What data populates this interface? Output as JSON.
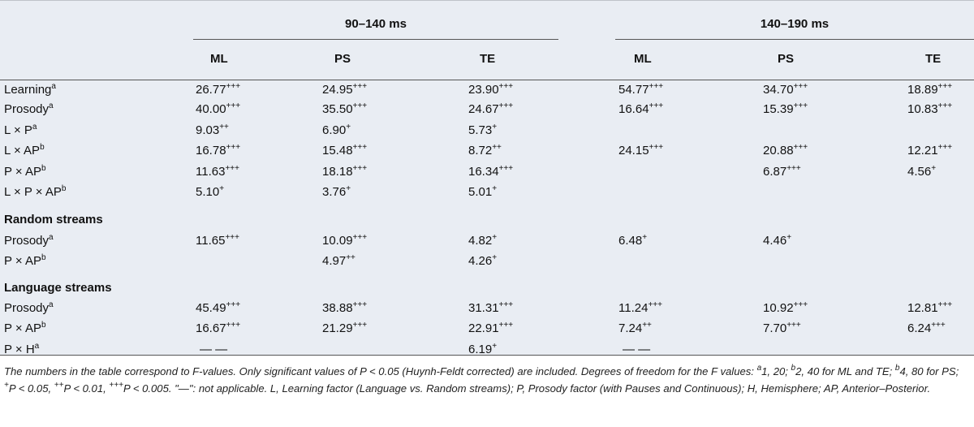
{
  "header": {
    "groups": [
      "90–140 ms",
      "140–190 ms"
    ],
    "columns": [
      "ML",
      "PS",
      "TE",
      "ML",
      "PS",
      "TE"
    ]
  },
  "rows": [
    {
      "label": "Learning",
      "sup": "a",
      "cells": [
        [
          "26.77",
          "+++"
        ],
        [
          "24.95",
          "+++"
        ],
        [
          "23.90",
          "+++"
        ],
        [
          "54.77",
          "+++"
        ],
        [
          "34.70",
          "+++"
        ],
        [
          "18.89",
          "+++"
        ]
      ]
    },
    {
      "label": "Prosody",
      "sup": "a",
      "cells": [
        [
          "40.00",
          "+++"
        ],
        [
          "35.50",
          "+++"
        ],
        [
          "24.67",
          "+++"
        ],
        [
          "16.64",
          "+++"
        ],
        [
          "15.39",
          "+++"
        ],
        [
          "10.83",
          "+++"
        ]
      ]
    },
    {
      "label": "L × P",
      "sup": "a",
      "cells": [
        [
          "9.03",
          "++"
        ],
        [
          "6.90",
          "+"
        ],
        [
          "5.73",
          "+"
        ],
        null,
        null,
        null
      ]
    },
    {
      "label": "L × AP",
      "sup": "b",
      "cells": [
        [
          "16.78",
          "+++"
        ],
        [
          "15.48",
          "+++"
        ],
        [
          "8.72",
          "++"
        ],
        [
          "24.15",
          "+++"
        ],
        [
          "20.88",
          "+++"
        ],
        [
          "12.21",
          "+++"
        ]
      ]
    },
    {
      "label": "P × AP",
      "sup": "b",
      "cells": [
        [
          "11.63",
          "+++"
        ],
        [
          "18.18",
          "+++"
        ],
        [
          "16.34",
          "+++"
        ],
        null,
        [
          "6.87",
          "+++"
        ],
        [
          "4.56",
          "+"
        ]
      ]
    },
    {
      "label": "L × P × AP",
      "sup": "b",
      "cells": [
        [
          "5.10",
          "+"
        ],
        [
          "3.76",
          "+"
        ],
        [
          "5.01",
          "+"
        ],
        null,
        null,
        null
      ]
    },
    {
      "label": "Random streams",
      "section": true
    },
    {
      "label": "Prosody",
      "sup": "a",
      "cells": [
        [
          "11.65",
          "+++"
        ],
        [
          "10.09",
          "+++"
        ],
        [
          "4.82",
          "+"
        ],
        [
          "6.48",
          "+"
        ],
        [
          "4.46",
          "+"
        ],
        null
      ]
    },
    {
      "label": "P × AP",
      "sup": "b",
      "cells": [
        null,
        [
          "4.97",
          "++"
        ],
        [
          "4.26",
          "+"
        ],
        null,
        null,
        null
      ]
    },
    {
      "label": "Language streams",
      "section": true
    },
    {
      "label": "Prosody",
      "sup": "a",
      "cells": [
        [
          "45.49",
          "+++"
        ],
        [
          "38.88",
          "+++"
        ],
        [
          "31.31",
          "+++"
        ],
        [
          "11.24",
          "+++"
        ],
        [
          "10.92",
          "+++"
        ],
        [
          "12.81",
          "+++"
        ]
      ]
    },
    {
      "label": "P × AP",
      "sup": "b",
      "cells": [
        [
          "16.67",
          "+++"
        ],
        [
          "21.29",
          "+++"
        ],
        [
          "22.91",
          "+++"
        ],
        [
          "7.24",
          "++"
        ],
        [
          "7.70",
          "+++"
        ],
        [
          "6.24",
          "+++"
        ]
      ]
    },
    {
      "label": "P × H",
      "sup": "a",
      "cells": [
        [
          "— —",
          ""
        ],
        null,
        [
          "6.19",
          "+"
        ],
        [
          "— —",
          ""
        ],
        null,
        null
      ]
    }
  ],
  "footnote": {
    "p1": "The numbers in the table correspond to F-values. Only significant values of P < 0.05 (Huynh-Feldt corrected) are included. Degrees of freedom for the F values: ",
    "sup_a": "a",
    "p2": "1, 20; ",
    "sup_b": "b",
    "p3": "2, 40 for ML and TE; ",
    "p4": "4, 80 for PS; ",
    "sup_1": "+",
    "p5": "P < 0.05, ",
    "sup_2": "++",
    "p6": "P < 0.01, ",
    "sup_3": "+++",
    "p7": "P < 0.005. \"—\": not applicable. L, Learning factor (Language vs. Random streams); P, Prosody factor (with Pauses and Continuous); H, Hemisphere; AP, Anterior–Posterior."
  }
}
